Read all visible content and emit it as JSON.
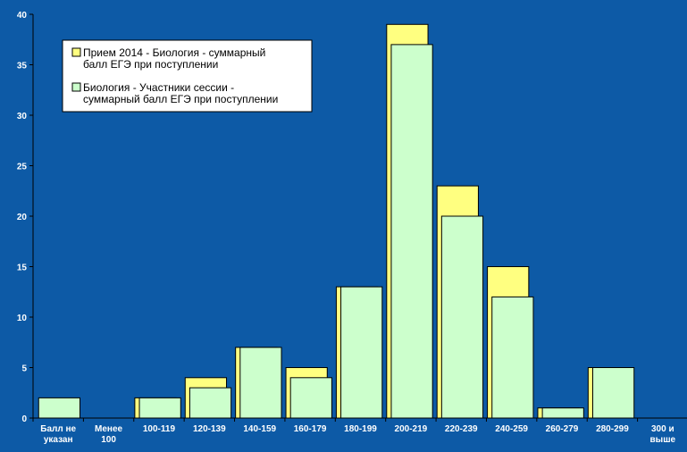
{
  "chart_data": {
    "type": "bar",
    "title": "",
    "xlabel": "",
    "ylabel": "",
    "ylim": [
      0,
      40
    ],
    "yticks": [
      0,
      5,
      10,
      15,
      20,
      25,
      30,
      35,
      40
    ],
    "grid": false,
    "legend_position": "top-left",
    "categories": [
      [
        "Балл не",
        "указан"
      ],
      [
        "Менее",
        "100"
      ],
      [
        "100-119"
      ],
      [
        "120-139"
      ],
      [
        "140-159"
      ],
      [
        "160-179"
      ],
      [
        "180-199"
      ],
      [
        "200-219"
      ],
      [
        "220-239"
      ],
      [
        "240-259"
      ],
      [
        "260-279"
      ],
      [
        "280-299"
      ],
      [
        "300 и",
        "выше"
      ]
    ],
    "series": [
      {
        "name_lines": [
          "Прием 2014 - Биология - суммарный",
          "балл ЕГЭ при поступлении"
        ],
        "color": "#ffff80",
        "values": [
          0,
          0,
          2,
          4,
          7,
          5,
          13,
          39,
          23,
          15,
          1,
          5,
          0
        ]
      },
      {
        "name_lines": [
          "Биология - Участники сессии -",
          "суммарный балл ЕГЭ при поступлении"
        ],
        "color": "#ccffcc",
        "values": [
          2,
          0,
          2,
          3,
          7,
          4,
          13,
          37,
          20,
          12,
          1,
          5,
          0
        ]
      }
    ],
    "colors": {
      "background": "#0d5aa6",
      "axis": "#000000",
      "text": "#ffffff"
    }
  }
}
